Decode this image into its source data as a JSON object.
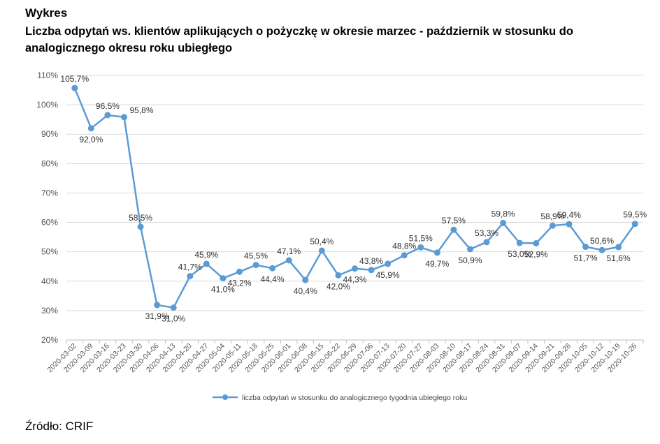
{
  "header": {
    "label": "Wykres",
    "title": "Liczba odpytań ws. klientów aplikujących o pożyczkę w okresie marzec - październik w stosunku do analogicznego okresu roku ubiegłego"
  },
  "source": "Źródło: CRIF",
  "chart_data": {
    "type": "line",
    "title": "Liczba odpytań ws. klientów aplikujących o pożyczkę w okresie marzec - październik w stosunku do analogicznego okresu roku ubiegłego",
    "xlabel": "",
    "ylabel": "",
    "ylim": [
      20,
      110
    ],
    "yticks": [
      "20%",
      "30%",
      "40%",
      "50%",
      "60%",
      "70%",
      "80%",
      "90%",
      "100%",
      "110%"
    ],
    "grid": "horizontal",
    "legend_position": "bottom",
    "color": "#5B9BD5",
    "categories": [
      "2020-03-02",
      "2020-03-09",
      "2020-03-16",
      "2020-03-23",
      "2020-03-30",
      "2020-04-06",
      "2020-04-13",
      "2020-04-20",
      "2020-04-27",
      "2020-05-04",
      "2020-05-11",
      "2020-05-18",
      "2020-05-25",
      "2020-06-01",
      "2020-06-08",
      "2020-06-15",
      "2020-06-22",
      "2020-06-29",
      "2020-07-06",
      "2020-07-13",
      "2020-07-20",
      "2020-07-27",
      "2020-08-03",
      "2020-08-10",
      "2020-08-17",
      "2020-08-24",
      "2020-08-31",
      "2020-09-07",
      "2020-09-14",
      "2020-09-21",
      "2020-09-28",
      "2020-10-05",
      "2020-10-12",
      "2020-10-19",
      "2020-10-26"
    ],
    "series": [
      {
        "name": "liczba odpytań w stosunku do analogicznego tygodnia ubiegłego roku",
        "values": [
          105.7,
          92.0,
          96.5,
          95.8,
          58.5,
          31.9,
          31.0,
          41.7,
          45.9,
          41.0,
          43.2,
          45.5,
          44.4,
          47.1,
          40.4,
          50.4,
          42.0,
          44.3,
          43.8,
          45.9,
          48.8,
          51.5,
          49.7,
          57.5,
          50.9,
          53.3,
          59.8,
          53.0,
          52.9,
          58.9,
          59.4,
          51.7,
          50.6,
          51.6,
          59.5
        ],
        "data_labels": [
          "105,7%",
          "92,0%",
          "96,5%",
          "95,8%",
          "58,5%",
          "31,9%",
          "31,0%",
          "41,7%",
          "45,9%",
          "41,0%",
          "43,2%",
          "45,5%",
          "44,4%",
          "47,1%",
          "40,4%",
          "50,4%",
          "42,0%",
          "44,3%",
          "43,8%",
          "45,9%",
          "48,8%",
          "51,5%",
          "49,7%",
          "57,5%",
          "50,9%",
          "53,3%",
          "59,8%",
          "53,0%",
          "52,9%",
          "58,9%",
          "59,4%",
          "51,7%",
          "50,6%",
          "51,6%",
          "59,5%"
        ],
        "label_positions": [
          "above",
          "below",
          "above",
          "right",
          "above",
          "below",
          "below",
          "above",
          "above",
          "below",
          "below",
          "above",
          "below",
          "above",
          "below",
          "above",
          "below",
          "below",
          "above",
          "below",
          "above",
          "above",
          "below",
          "above",
          "below",
          "above",
          "above",
          "below",
          "below",
          "above",
          "above",
          "below",
          "above",
          "below",
          "above"
        ]
      }
    ]
  }
}
